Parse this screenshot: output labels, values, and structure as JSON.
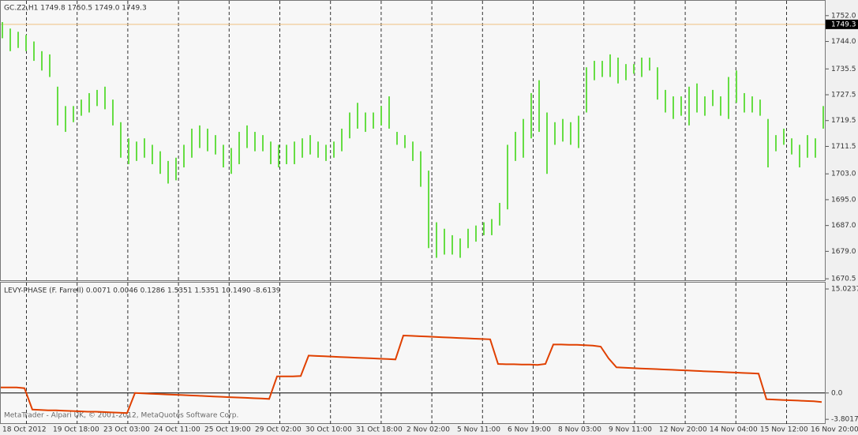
{
  "chart_data": [
    {
      "type": "ohlc",
      "header": "GC.Z2,H1  1749.8 1750.5 1749.0 1749.3",
      "color": "#66dd44",
      "last_price": 1749.3,
      "last_price_color": "#f0c080",
      "ylim": [
        1669.8,
        1756.6
      ],
      "yticks": [
        {
          "value": 1752,
          "label": "1752.0"
        },
        {
          "value": 1744,
          "label": "1744.0"
        },
        1735.5,
        1727.5,
        1719.5,
        1711.5,
        {
          "value": 1703,
          "label": "1703.0"
        },
        {
          "value": 1695,
          "label": "1695.0"
        },
        {
          "value": 1687,
          "label": "1687.0"
        },
        {
          "value": 1679,
          "label": "1679.0"
        },
        1670.5
      ],
      "high": [
        1750,
        1748,
        1747,
        1746,
        1744,
        1741,
        1740,
        1730,
        1724,
        1724,
        1726,
        1728,
        1729,
        1730,
        1726,
        1719,
        1714,
        1713,
        1714,
        1712,
        1710,
        1707,
        1708,
        1712,
        1717,
        1718,
        1717,
        1715,
        1712,
        1711,
        1716,
        1718,
        1716,
        1715,
        1713,
        1712,
        1712,
        1713,
        1714,
        1715,
        1713,
        1712,
        1713,
        1717,
        1722,
        1725,
        1722,
        1722,
        1724,
        1727,
        1716,
        1715,
        1713,
        1710,
        1704,
        1688,
        1686,
        1684,
        1683,
        1686,
        1687,
        1688,
        1689,
        1694,
        1712,
        1716,
        1720,
        1728,
        1732,
        1722,
        1719,
        1720,
        1719,
        1721,
        1736,
        1738,
        1738,
        1740,
        1739,
        1737,
        1737,
        1739,
        1739,
        1736,
        1729,
        1727,
        1727,
        1730,
        1731,
        1727,
        1729,
        1727,
        1733,
        1735,
        1728,
        1727,
        1726,
        1720,
        1715,
        1717,
        1714,
        1712,
        1715,
        1714,
        1724
      ],
      "low": [
        1745,
        1741,
        1742,
        1741,
        1738,
        1735,
        1733,
        1718,
        1716,
        1719,
        1721,
        1722,
        1724,
        1723,
        1718,
        1708,
        1706,
        1707,
        1708,
        1706,
        1703,
        1700,
        1701,
        1705,
        1708,
        1711,
        1710,
        1709,
        1705,
        1703,
        1706,
        1711,
        1710,
        1710,
        1706,
        1705,
        1706,
        1706,
        1708,
        1709,
        1708,
        1707,
        1708,
        1710,
        1714,
        1717,
        1716,
        1717,
        1718,
        1717,
        1712,
        1711,
        1707,
        1699,
        1680,
        1677,
        1678,
        1678,
        1677,
        1680,
        1682,
        1684,
        1684,
        1687,
        1692,
        1707,
        1708,
        1714,
        1716,
        1703,
        1712,
        1713,
        1712,
        1711,
        1722,
        1732,
        1733,
        1733,
        1731,
        1732,
        1734,
        1733,
        1735,
        1726,
        1722,
        1720,
        1721,
        1718,
        1722,
        1721,
        1724,
        1721,
        1720,
        1725,
        1722,
        1722,
        1721,
        1705,
        1710,
        1712,
        1709,
        1705,
        1708,
        1708,
        1717
      ]
    },
    {
      "type": "line",
      "title": "LEVY-PHASE (F. Farrell) 0.0071 0.0046 0.1286 1.5351 1.5351 10.1490 -8.6139",
      "color": "#e04000",
      "watermark": "MetaTrader - Alpari UK, © 2001-2012, MetaQuotes Software Corp.",
      "ylim": [
        -4.47,
        15.94
      ],
      "yticks": [
        15.0237,
        {
          "value": 0,
          "label": "0.0"
        },
        -3.8017
      ],
      "values": [
        0.8,
        0.8,
        0.8,
        0.7,
        -2.4,
        -2.45,
        -2.5,
        -2.5,
        -2.55,
        -2.6,
        -2.65,
        -2.7,
        -2.7,
        -2.75,
        -2.8,
        -2.85,
        -2.9,
        0.0,
        -0.05,
        -0.1,
        -0.15,
        -0.2,
        -0.25,
        -0.3,
        -0.35,
        -0.4,
        -0.45,
        -0.5,
        -0.55,
        -0.6,
        -0.65,
        -0.7,
        -0.75,
        -0.8,
        -0.85,
        2.4,
        2.4,
        2.4,
        2.45,
        5.4,
        5.35,
        5.3,
        5.25,
        5.2,
        5.15,
        5.1,
        5.05,
        5.0,
        4.95,
        4.9,
        4.85,
        8.3,
        8.25,
        8.2,
        8.15,
        8.1,
        8.05,
        8.0,
        7.95,
        7.9,
        7.85,
        7.8,
        7.75,
        4.2,
        4.15,
        4.15,
        4.1,
        4.1,
        4.05,
        4.2,
        7.0,
        7.0,
        6.95,
        6.95,
        6.9,
        6.85,
        6.7,
        5.0,
        3.7,
        3.65,
        3.6,
        3.55,
        3.5,
        3.45,
        3.4,
        3.35,
        3.3,
        3.25,
        3.2,
        3.15,
        3.1,
        3.05,
        3.0,
        2.95,
        2.9,
        2.85,
        2.8,
        -0.9,
        -0.95,
        -1.0,
        -1.05,
        -1.1,
        -1.15,
        -1.2,
        -1.3
      ],
      "x_labels": [
        "18 Oct 2012",
        "19 Oct 18:00",
        "23 Oct 03:00",
        "24 Oct 11:00",
        "25 Oct 19:00",
        "29 Oct 02:00",
        "30 Oct 10:00",
        "31 Oct 18:00",
        "2 Nov 02:00",
        "5 Nov 11:00",
        "6 Nov 19:00",
        "8 Nov 03:00",
        "9 Nov 11:00",
        "12 Nov 20:00",
        "14 Nov 04:00",
        "15 Nov 12:00",
        "16 Nov 20:00"
      ]
    }
  ]
}
